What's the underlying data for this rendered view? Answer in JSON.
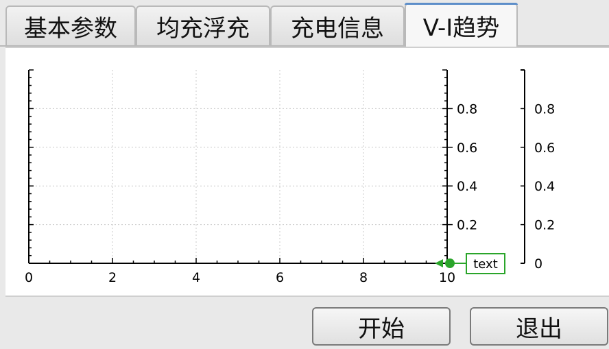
{
  "tabs": [
    {
      "label": "基本参数"
    },
    {
      "label": "均充浮充"
    },
    {
      "label": "充电信息"
    },
    {
      "label": "V-I趋势"
    }
  ],
  "active_tab": 3,
  "buttons": {
    "start_label": "开始",
    "exit_label": "退出"
  },
  "chart_data": {
    "type": "line",
    "title": "",
    "xlabel": "",
    "ylabel": "",
    "x_ticks": [
      "0",
      "2",
      "4",
      "6",
      "8",
      "10"
    ],
    "xlim": [
      0,
      10
    ],
    "y_left_ticks": [],
    "y_right_ticks": [
      "0.8",
      "0.6",
      "0.4",
      "0.2"
    ],
    "y_right2_ticks": [
      "0.8",
      "0.6",
      "0.4",
      "0.2",
      "0"
    ],
    "ylim": [
      0,
      1
    ],
    "grid": true,
    "series": [],
    "marker_label": "text",
    "marker_color": "#2aa52a"
  }
}
